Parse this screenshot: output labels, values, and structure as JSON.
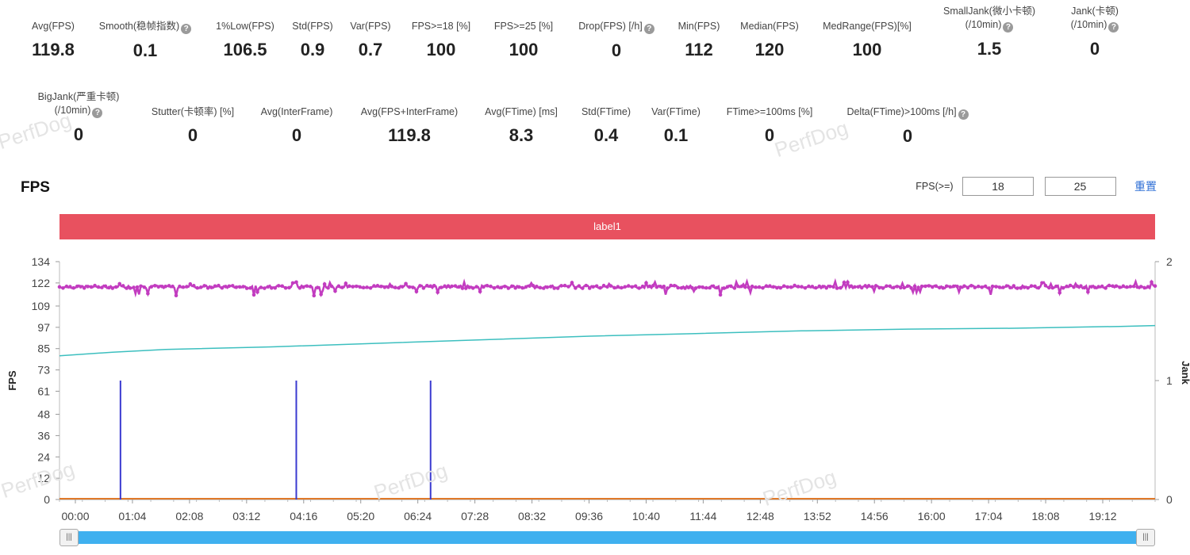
{
  "metrics_row1": [
    {
      "label": "Avg(FPS)",
      "value": "119.8"
    },
    {
      "label": "Smooth(稳帧指数)",
      "value": "0.1",
      "help": true
    },
    {
      "label": "1%Low(FPS)",
      "value": "106.5"
    },
    {
      "label": "Std(FPS)",
      "value": "0.9"
    },
    {
      "label": "Var(FPS)",
      "value": "0.7"
    },
    {
      "label": "FPS>=18 [%]",
      "value": "100"
    },
    {
      "label": "FPS>=25 [%]",
      "value": "100"
    },
    {
      "label": "Drop(FPS) [/h]",
      "value": "0",
      "help": true
    },
    {
      "label": "Min(FPS)",
      "value": "112"
    },
    {
      "label": "Median(FPS)",
      "value": "120"
    },
    {
      "label": "MedRange(FPS)[%]",
      "value": "100"
    },
    {
      "label": "SmallJank(微小卡顿)",
      "label2": "(/10min)",
      "value": "1.5",
      "help": true
    },
    {
      "label": "Jank(卡顿)",
      "label2": "(/10min)",
      "value": "0",
      "help": true
    }
  ],
  "metrics_row2": [
    {
      "label": "BigJank(严重卡顿)",
      "label2": "(/10min)",
      "value": "0",
      "help": true
    },
    {
      "label": "Stutter(卡顿率) [%]",
      "value": "0"
    },
    {
      "label": "Avg(InterFrame)",
      "value": "0"
    },
    {
      "label": "Avg(FPS+InterFrame)",
      "value": "119.8"
    },
    {
      "label": "Avg(FTime) [ms]",
      "value": "8.3"
    },
    {
      "label": "Std(FTime)",
      "value": "0.4"
    },
    {
      "label": "Var(FTime)",
      "value": "0.1"
    },
    {
      "label": "FTime>=100ms [%]",
      "value": "0"
    },
    {
      "label": "Delta(FTime)>100ms [/h]",
      "value": "0",
      "help": true
    }
  ],
  "section_title": "FPS",
  "threshold": {
    "label": "FPS(>=)",
    "v1": "18",
    "v2": "25",
    "reset": "重置"
  },
  "label_bar": "label1",
  "watermark": "PerfDog",
  "chart_data": {
    "type": "line",
    "ylabel": "FPS",
    "y2label": "Jank",
    "yticks": [
      0,
      12,
      24,
      36,
      48,
      61,
      73,
      85,
      97,
      109,
      122,
      134
    ],
    "y2ticks": [
      0,
      1,
      2
    ],
    "ylim": [
      0,
      134
    ],
    "y2lim": [
      0,
      2
    ],
    "xticks": [
      "00:00",
      "01:04",
      "02:08",
      "03:12",
      "04:16",
      "05:20",
      "06:24",
      "07:28",
      "08:32",
      "09:36",
      "10:40",
      "11:44",
      "12:48",
      "13:52",
      "14:56",
      "16:00",
      "17:04",
      "18:08",
      "19:12"
    ],
    "x_range_seconds": [
      0,
      1240
    ],
    "colors": {
      "fps": "#c23cc0",
      "secondary": "#3cbfbf",
      "jank": "#3a3ad0",
      "baseline": "#e07a2a"
    },
    "series": [
      {
        "kind": "fps",
        "mean": 119.8,
        "min": 112
      },
      {
        "kind": "secondary",
        "points": [
          [
            0,
            81
          ],
          [
            60,
            83
          ],
          [
            120,
            84.5
          ],
          [
            240,
            86
          ],
          [
            360,
            88
          ],
          [
            480,
            90
          ],
          [
            600,
            92
          ],
          [
            720,
            93.5
          ],
          [
            840,
            95
          ],
          [
            960,
            96
          ],
          [
            1080,
            96.5
          ],
          [
            1200,
            97.5
          ],
          [
            1240,
            98
          ]
        ]
      },
      {
        "kind": "jank",
        "name": "Jank",
        "events_seconds": [
          69,
          268,
          420
        ],
        "value": 1
      }
    ]
  }
}
